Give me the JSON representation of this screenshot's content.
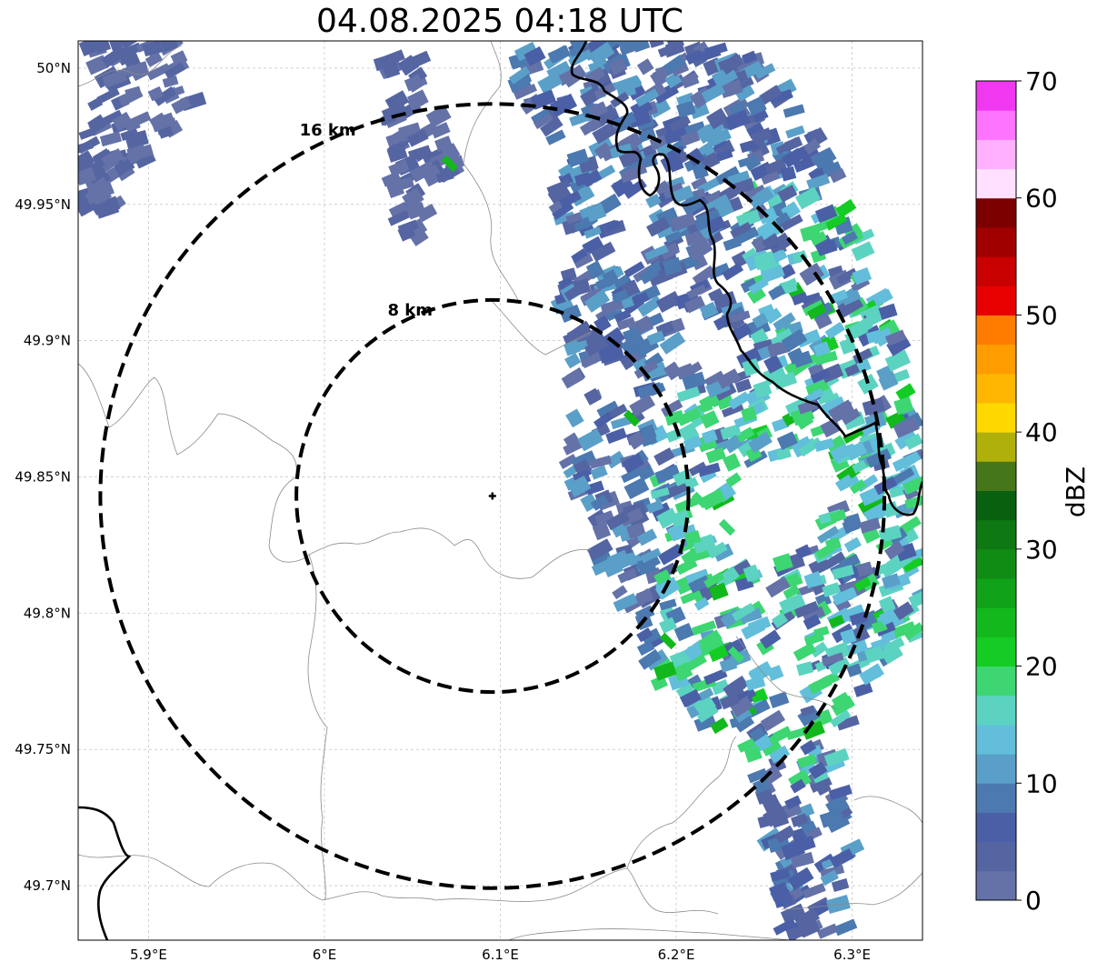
{
  "title": "04.08.2025 04:18 UTC",
  "map": {
    "lon_range": [
      5.86,
      6.34
    ],
    "lat_range": [
      49.68,
      50.01
    ],
    "x_ticks": [
      {
        "value": 5.9,
        "label": "5.9°E"
      },
      {
        "value": 6.0,
        "label": "6°E"
      },
      {
        "value": 6.1,
        "label": "6.1°E"
      },
      {
        "value": 6.2,
        "label": "6.2°E"
      },
      {
        "value": 6.3,
        "label": "6.3°E"
      }
    ],
    "y_ticks": [
      {
        "value": 50.0,
        "label": "50°N"
      },
      {
        "value": 49.95,
        "label": "49.95°N"
      },
      {
        "value": 49.9,
        "label": "49.9°N"
      },
      {
        "value": 49.85,
        "label": "49.85°N"
      },
      {
        "value": 49.8,
        "label": "49.8°N"
      },
      {
        "value": 49.75,
        "label": "49.75°N"
      },
      {
        "value": 49.7,
        "label": "49.7°N"
      }
    ],
    "grid": true,
    "radar_site": {
      "lon": 6.0955,
      "lat": 49.843
    },
    "range_rings": [
      {
        "radius_km": 8,
        "label": "8 km"
      },
      {
        "radius_km": 16,
        "label": "16 km"
      }
    ]
  },
  "colorbar": {
    "label": "dBZ",
    "min": 0,
    "max": 70,
    "ticks": [
      "0",
      "10",
      "20",
      "30",
      "40",
      "50",
      "60",
      "70"
    ],
    "colors": [
      "#6472a8",
      "#5565a2",
      "#4a5fa6",
      "#4b79b0",
      "#5a9fc8",
      "#62bedb",
      "#5cd3c1",
      "#3dd672",
      "#14cc24",
      "#12b81c",
      "#10a218",
      "#108c14",
      "#0e7812",
      "#09600e",
      "#45771a",
      "#b0b00a",
      "#ffd800",
      "#ffb600",
      "#ff9c00",
      "#ff7c00",
      "#e80000",
      "#c80000",
      "#a00000",
      "#7c0000",
      "#ffe0ff",
      "#ffb0ff",
      "#ff74ff",
      "#f038f0"
    ]
  }
}
